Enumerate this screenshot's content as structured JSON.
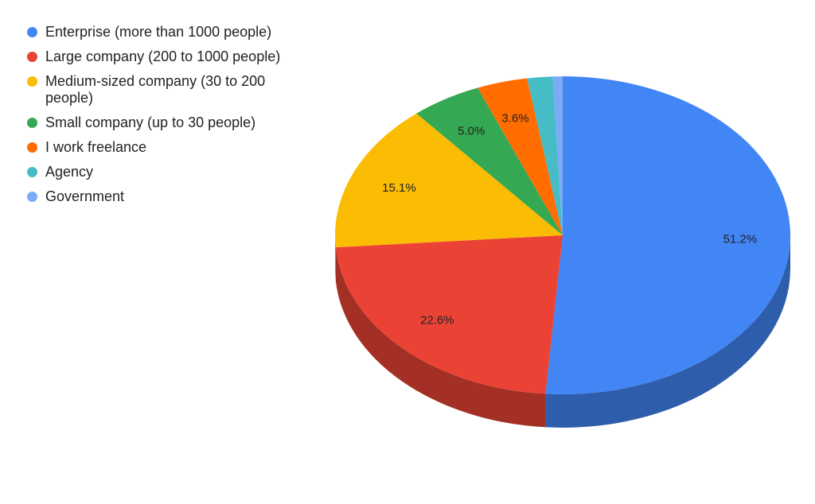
{
  "chart_data": {
    "type": "pie",
    "categories": [
      "Enterprise (more than 1000 people)",
      "Large company (200 to 1000 people)",
      "Medium-sized company (30 to 200 people)",
      "Small company (up to 30 people)",
      "I work freelance",
      "Agency",
      "Government"
    ],
    "values": [
      51.2,
      22.6,
      15.1,
      5.0,
      3.6,
      1.8,
      0.7
    ],
    "value_labels": [
      "51.2%",
      "22.6%",
      "15.1%",
      "5.0%",
      "3.6%",
      null,
      null
    ],
    "colors": [
      "#4285f4",
      "#ea4335",
      "#fbbc04",
      "#34a853",
      "#ff6d01",
      "#46bdc6",
      "#7baaf7"
    ],
    "legend": "left"
  }
}
